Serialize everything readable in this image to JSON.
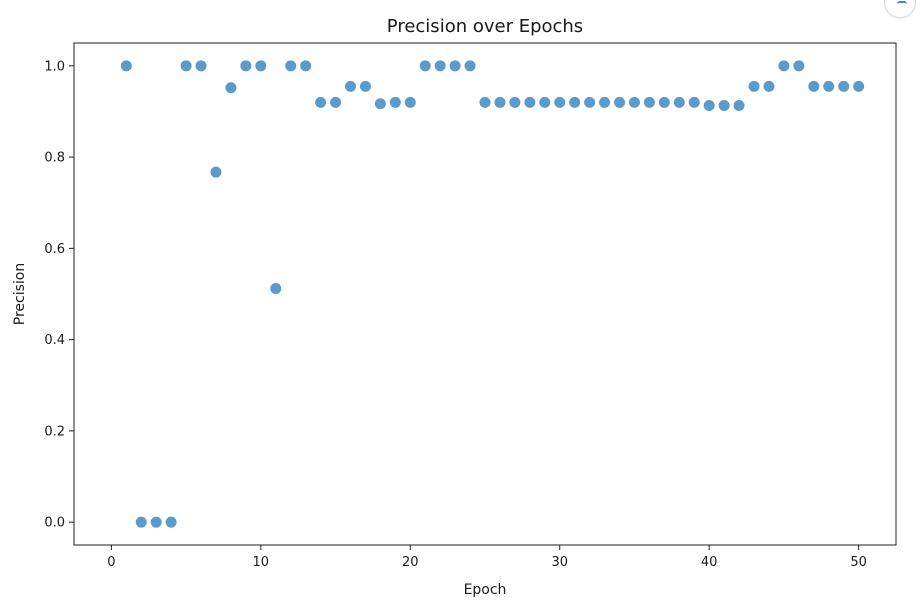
{
  "chart_data": {
    "type": "scatter",
    "title": "Precision over Epochs",
    "xlabel": "Epoch",
    "ylabel": "Precision",
    "xlim": [
      -2.5,
      52.5
    ],
    "ylim": [
      -0.05,
      1.05
    ],
    "xticks": [
      0,
      10,
      20,
      30,
      40,
      50
    ],
    "yticks": [
      0.0,
      0.2,
      0.4,
      0.6,
      0.8,
      1.0
    ],
    "xtick_labels": [
      "0",
      "10",
      "20",
      "30",
      "40",
      "50"
    ],
    "ytick_labels": [
      "0.0",
      "0.2",
      "0.4",
      "0.6",
      "0.8",
      "1.0"
    ],
    "grid": false,
    "marker_color": "#4f93c8",
    "series": [
      {
        "x": [
          1,
          2,
          3,
          4,
          5,
          6,
          7,
          8,
          9,
          10,
          11,
          12,
          13,
          14,
          15,
          16,
          17,
          18,
          19,
          20,
          21,
          22,
          23,
          24,
          25,
          26,
          27,
          28,
          29,
          30,
          31,
          32,
          33,
          34,
          35,
          36,
          37,
          38,
          39,
          40,
          41,
          42,
          43,
          44,
          45,
          46,
          47,
          48,
          49,
          50
        ],
        "y": [
          1.0,
          0.0,
          0.0,
          0.0,
          1.0,
          1.0,
          0.767,
          0.952,
          1.0,
          1.0,
          0.512,
          1.0,
          1.0,
          0.92,
          0.92,
          0.955,
          0.955,
          0.917,
          0.92,
          0.92,
          1.0,
          1.0,
          1.0,
          1.0,
          0.92,
          0.92,
          0.92,
          0.92,
          0.92,
          0.92,
          0.92,
          0.92,
          0.92,
          0.92,
          0.92,
          0.92,
          0.92,
          0.92,
          0.92,
          0.913,
          0.913,
          0.913,
          0.955,
          0.955,
          1.0,
          1.0,
          0.955,
          0.955,
          0.955,
          0.955
        ]
      }
    ]
  },
  "widget": {
    "icon": "floating-action-icon"
  }
}
